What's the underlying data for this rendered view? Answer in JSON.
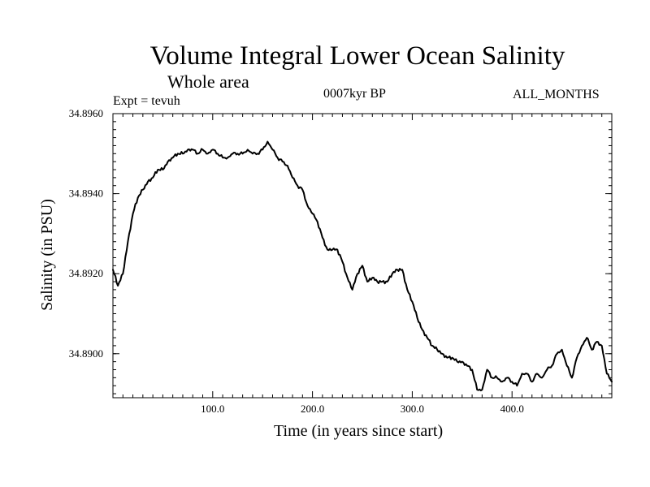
{
  "chart_data": {
    "type": "line",
    "title": "Volume Integral Lower Ocean Salinity",
    "subtitle": "Whole area",
    "experiment_label": "Expt = tevuh",
    "period_label": "0007kyr BP",
    "months_label": "ALL_MONTHS",
    "xlabel": "Time (in years since start)",
    "ylabel": "Salinity (in PSU)",
    "xlim": [
      0,
      500
    ],
    "ylim": [
      34.8889,
      34.896
    ],
    "x_ticks": [
      100,
      200,
      300,
      400
    ],
    "x_tick_labels": [
      "100.0",
      "200.0",
      "300.0",
      "400.0"
    ],
    "y_ticks": [
      34.896,
      34.894,
      34.892,
      34.89
    ],
    "y_tick_labels": [
      "34.8960",
      "34.8940",
      "34.8920",
      "34.8900"
    ],
    "grid": false,
    "series": [
      {
        "name": "Salinity",
        "x": [
          0,
          5,
          10,
          15,
          20,
          25,
          30,
          35,
          40,
          45,
          50,
          55,
          60,
          65,
          70,
          75,
          80,
          85,
          90,
          95,
          100,
          105,
          110,
          115,
          120,
          125,
          130,
          135,
          140,
          145,
          150,
          155,
          160,
          165,
          170,
          175,
          180,
          185,
          190,
          195,
          200,
          205,
          210,
          215,
          220,
          225,
          230,
          235,
          240,
          245,
          250,
          255,
          260,
          265,
          270,
          275,
          280,
          285,
          290,
          295,
          300,
          305,
          310,
          315,
          320,
          325,
          330,
          335,
          340,
          345,
          350,
          355,
          360,
          365,
          370,
          375,
          380,
          385,
          390,
          395,
          400,
          405,
          410,
          415,
          420,
          425,
          430,
          435,
          440,
          445,
          450,
          455,
          460,
          465,
          470,
          475,
          480,
          485,
          490,
          495,
          500
        ],
        "values": [
          34.8921,
          34.8917,
          34.892,
          34.8928,
          34.8935,
          34.8939,
          34.8941,
          34.8943,
          34.8944,
          34.8946,
          34.8946,
          34.8948,
          34.8949,
          34.895,
          34.895,
          34.8951,
          34.8951,
          34.895,
          34.8951,
          34.895,
          34.8951,
          34.895,
          34.8949,
          34.8949,
          34.895,
          34.895,
          34.895,
          34.8951,
          34.895,
          34.895,
          34.8951,
          34.8953,
          34.8951,
          34.8949,
          34.8948,
          34.8947,
          34.8944,
          34.8942,
          34.8941,
          34.8937,
          34.8935,
          34.8933,
          34.8929,
          34.8926,
          34.8926,
          34.8926,
          34.8923,
          34.8919,
          34.8916,
          34.892,
          34.8922,
          34.8918,
          34.8919,
          34.8918,
          34.8918,
          34.8918,
          34.892,
          34.8921,
          34.8921,
          34.8916,
          34.8913,
          34.8909,
          34.8906,
          34.8904,
          34.8902,
          34.8901,
          34.89,
          34.8899,
          34.8899,
          34.8898,
          34.8898,
          34.8897,
          34.8896,
          34.8891,
          34.8891,
          34.8896,
          34.8894,
          34.8894,
          34.8893,
          34.8894,
          34.8893,
          34.8892,
          34.8895,
          34.8895,
          34.8893,
          34.8895,
          34.8894,
          34.8896,
          34.8897,
          34.89,
          34.8901,
          34.8897,
          34.8894,
          34.8899,
          34.8902,
          34.8904,
          34.8901,
          34.8903,
          34.8902,
          34.8895,
          34.8893
        ]
      }
    ]
  }
}
